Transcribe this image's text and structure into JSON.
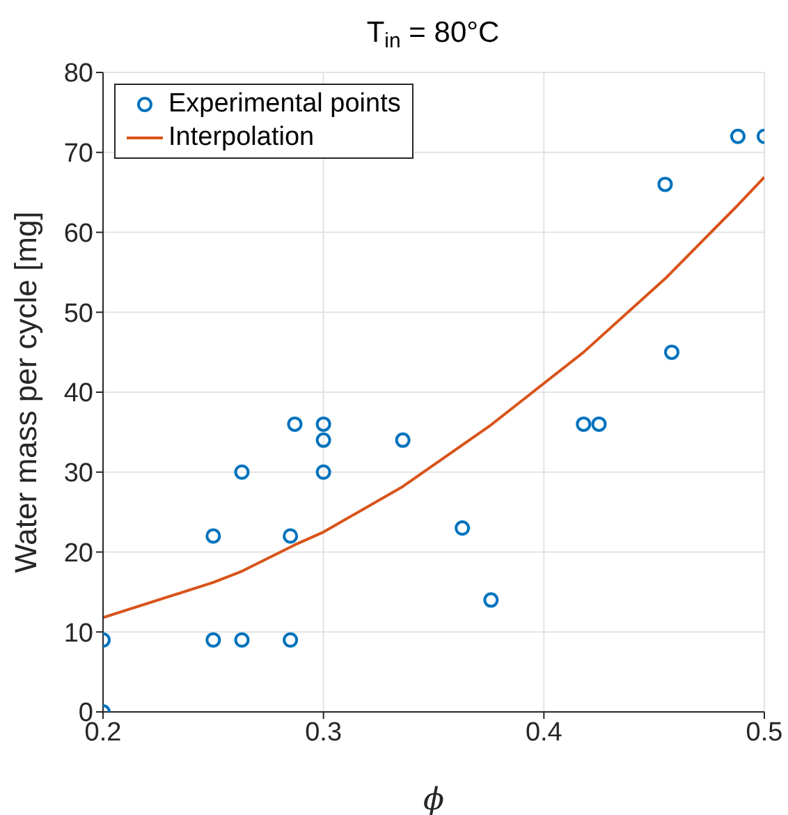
{
  "chart_data": {
    "type": "scatter",
    "title": "T$_{in}$ = 80°C",
    "xlabel": "ϕ",
    "ylabel": "Water mass per cycle [mg]",
    "xlim": [
      0.2,
      0.5
    ],
    "xticks": [
      0.2,
      0.3,
      0.4,
      0.5
    ],
    "ylim": [
      0,
      80
    ],
    "yticks": [
      0,
      10,
      20,
      30,
      40,
      50,
      60,
      70,
      80
    ],
    "grid": true,
    "legend": "top left",
    "series": [
      {
        "name": "Experimental points",
        "marker": "circle",
        "color": "#0072bd",
        "x": [
          0.2,
          0.2,
          0.25,
          0.25,
          0.263,
          0.263,
          0.287,
          0.285,
          0.285,
          0.3,
          0.3,
          0.3,
          0.336,
          0.363,
          0.376,
          0.418,
          0.425,
          0.455,
          0.458,
          0.488,
          0.5
        ],
        "values": [
          9,
          0,
          22,
          9,
          30,
          9,
          36,
          22,
          9,
          36,
          34,
          30,
          34,
          23,
          14,
          36,
          36,
          66,
          45,
          72,
          72
        ]
      },
      {
        "name": "Interpolation",
        "type": "line",
        "color": "#d95319",
        "line_style": "solid",
        "x": [
          0.2,
          0.25,
          0.263,
          0.287,
          0.3,
          0.336,
          0.376,
          0.418,
          0.455,
          0.488,
          0.5
        ],
        "values": [
          11.8,
          16.2,
          17.6,
          20.9,
          22.5,
          28.2,
          35.9,
          45,
          54.2,
          63.4,
          66.9
        ]
      }
    ]
  }
}
